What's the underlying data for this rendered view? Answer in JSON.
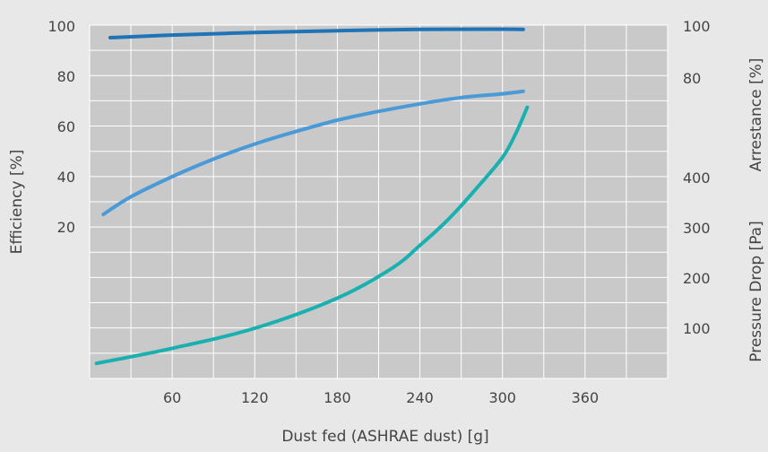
{
  "chart_data": {
    "type": "line",
    "xlabel": "Dust fed (ASHRAE dust) [g]",
    "ylabel_left": "Efficiency [%]",
    "ylabel_right_top": "Arrestance [%]",
    "ylabel_right_bottom": "Pressure Drop [Pa]",
    "xlim": [
      0,
      420
    ],
    "x_ticks": [
      60,
      120,
      180,
      240,
      300,
      360
    ],
    "left_ticks": [
      20,
      40,
      60,
      80,
      100
    ],
    "right_top_ticks": [
      80,
      100
    ],
    "right_bottom_ticks": [
      100,
      200,
      300,
      400
    ],
    "grid": true,
    "colors": {
      "arrestance": "#1f73b7",
      "efficiency": "#4a9ad8",
      "pressure_drop": "#1ab0b0",
      "plot_background": "#c9c9c9",
      "grid": "#ffffff"
    },
    "series": [
      {
        "key": "arrestance",
        "axis": "arrestance",
        "x": [
          15,
          60,
          120,
          180,
          240,
          300,
          315
        ],
        "y": [
          95.5,
          96.5,
          97.5,
          98.2,
          98.7,
          98.8,
          98.7
        ]
      },
      {
        "key": "efficiency",
        "axis": "efficiency",
        "x": [
          10,
          30,
          60,
          90,
          120,
          150,
          180,
          210,
          240,
          270,
          300,
          315
        ],
        "y": [
          25,
          32,
          40,
          47,
          53,
          58,
          62.5,
          66,
          69,
          71.5,
          73,
          74
        ]
      },
      {
        "key": "pressure_drop",
        "axis": "pressure_drop",
        "x": [
          5,
          60,
          120,
          180,
          220,
          240,
          260,
          280,
          300,
          310,
          318
        ],
        "y": [
          30,
          60,
          100,
          160,
          220,
          265,
          315,
          375,
          440,
          490,
          540
        ]
      }
    ]
  }
}
